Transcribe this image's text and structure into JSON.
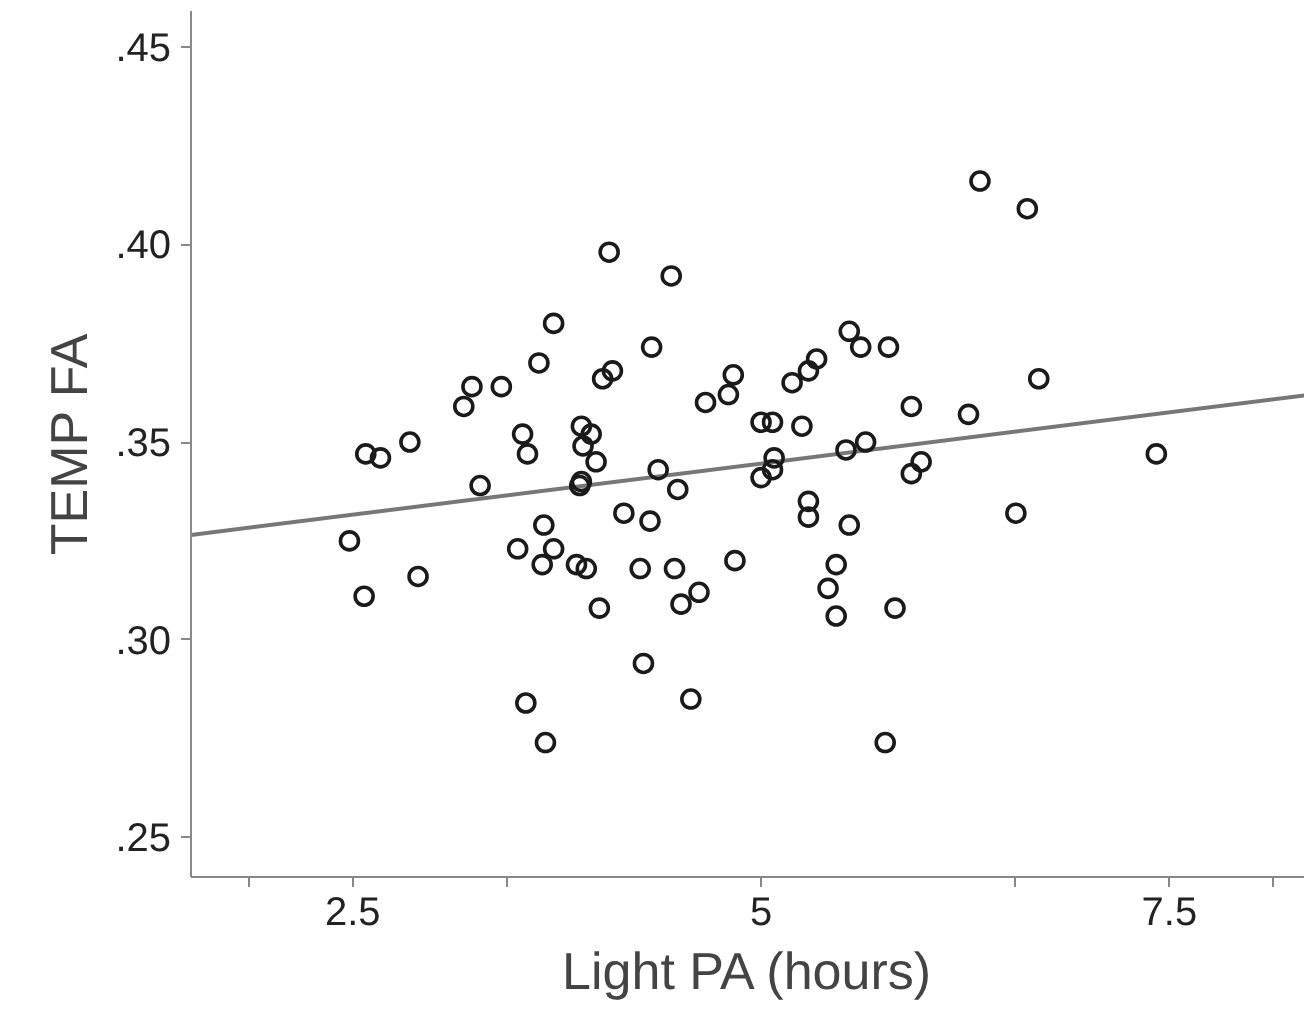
{
  "chart_data": {
    "type": "scatter",
    "xlabel": "Light PA (hours)",
    "ylabel": "TEMP FA",
    "xlim": [
      1.51,
      8.33
    ],
    "ylim": [
      0.24,
      0.459
    ],
    "xticks": [
      {
        "value": 1.86,
        "label": null
      },
      {
        "value": 2.5,
        "label": "2.5"
      },
      {
        "value": 3.44,
        "label": null
      },
      5,
      {
        "value": 6.56,
        "label": null
      },
      {
        "value": 7.5,
        "label": "7.5"
      },
      {
        "value": 8.13,
        "label": null
      }
    ],
    "yticks": [
      {
        "value": 0.25,
        "label": ".25"
      },
      {
        "value": 0.3,
        "label": ".30"
      },
      {
        "value": 0.35,
        "label": ".35"
      },
      {
        "value": 0.4,
        "label": ".40"
      },
      {
        "value": 0.45,
        "label": ".45"
      }
    ],
    "grid": false,
    "series": [
      {
        "marker": "circle",
        "color": "#1a1a1a",
        "x": [
          6.34,
          6.63,
          4.07,
          4.45,
          3.73,
          5.54,
          5.61,
          5.78,
          4.33,
          3.64,
          3.23,
          3.18,
          3.41,
          4.09,
          4.03,
          4.83,
          4.8,
          4.66,
          5.34,
          5.29,
          5.19,
          6.7,
          5.92,
          6.27,
          5.0,
          5.07,
          5.25,
          3.54,
          3.9,
          3.96,
          2.85,
          2.58,
          2.67,
          3.57,
          3.91,
          3.99,
          3.9,
          3.89,
          3.28,
          4.37,
          4.49,
          5.08,
          5.07,
          5.0,
          5.52,
          5.64,
          5.98,
          5.92,
          7.42,
          6.56,
          4.16,
          4.32,
          5.29,
          5.29,
          5.54,
          3.67,
          2.48,
          3.51,
          3.73,
          3.66,
          3.87,
          3.93,
          4.26,
          4.47,
          4.84,
          5.46,
          2.9,
          2.57,
          4.62,
          4.51,
          4.01,
          5.41,
          5.46,
          5.82,
          4.28,
          3.56,
          4.57,
          3.68,
          5.76
        ],
        "values": [
          0.416,
          0.409,
          0.398,
          0.392,
          0.38,
          0.378,
          0.374,
          0.374,
          0.374,
          0.37,
          0.364,
          0.359,
          0.364,
          0.368,
          0.366,
          0.367,
          0.362,
          0.36,
          0.371,
          0.368,
          0.365,
          0.366,
          0.359,
          0.357,
          0.355,
          0.355,
          0.354,
          0.352,
          0.354,
          0.352,
          0.35,
          0.347,
          0.346,
          0.347,
          0.349,
          0.345,
          0.34,
          0.339,
          0.339,
          0.343,
          0.338,
          0.346,
          0.343,
          0.341,
          0.348,
          0.35,
          0.345,
          0.342,
          0.347,
          0.332,
          0.332,
          0.33,
          0.335,
          0.331,
          0.329,
          0.329,
          0.325,
          0.323,
          0.323,
          0.319,
          0.319,
          0.318,
          0.318,
          0.318,
          0.32,
          0.319,
          0.316,
          0.311,
          0.312,
          0.309,
          0.308,
          0.313,
          0.306,
          0.308,
          0.294,
          0.284,
          0.285,
          0.274,
          0.274
        ]
      },
      {
        "type": "line",
        "marker": "none",
        "color": "#777777",
        "x": [
          1.51,
          8.33
        ],
        "values": [
          0.3265,
          0.3618
        ]
      }
    ]
  }
}
